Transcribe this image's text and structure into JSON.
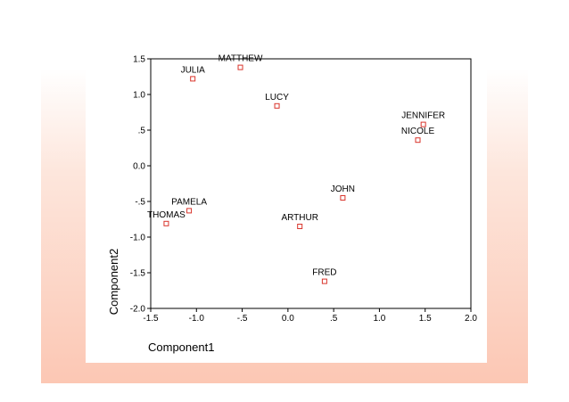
{
  "chart_data": {
    "type": "scatter",
    "title": "",
    "xlabel": "Component1",
    "ylabel": "Component2",
    "xlim": [
      -1.5,
      2.0
    ],
    "ylim": [
      -2.0,
      1.5
    ],
    "x_ticks": [
      -1.5,
      -1.0,
      -0.5,
      0.0,
      0.5,
      1.0,
      1.5,
      2.0
    ],
    "x_tick_labels": [
      "-1.5",
      "-1.0",
      "-.5",
      "0.0",
      ".5",
      "1.0",
      "1.5",
      "2.0"
    ],
    "y_ticks": [
      1.5,
      1.0,
      0.5,
      0.0,
      -0.5,
      -1.0,
      -1.5,
      -2.0
    ],
    "y_tick_labels": [
      "1.5",
      "1.0",
      ".5",
      "0.0",
      "-.5",
      "-1.0",
      "-1.5",
      "-2.0"
    ],
    "grid": false,
    "marker_color": "#d9342b",
    "points": [
      {
        "label": "MATTHEW",
        "x": -0.52,
        "y": 1.38
      },
      {
        "label": "JULIA",
        "x": -1.04,
        "y": 1.22
      },
      {
        "label": "LUCY",
        "x": -0.12,
        "y": 0.84
      },
      {
        "label": "JENNIFER",
        "x": 1.48,
        "y": 0.58
      },
      {
        "label": "NICOLE",
        "x": 1.42,
        "y": 0.36
      },
      {
        "label": "JOHN",
        "x": 0.6,
        "y": -0.45
      },
      {
        "label": "PAMELA",
        "x": -1.08,
        "y": -0.63
      },
      {
        "label": "THOMAS",
        "x": -1.33,
        "y": -0.81
      },
      {
        "label": "ARTHUR",
        "x": 0.13,
        "y": -0.85
      },
      {
        "label": "FRED",
        "x": 0.4,
        "y": -1.62
      }
    ]
  }
}
